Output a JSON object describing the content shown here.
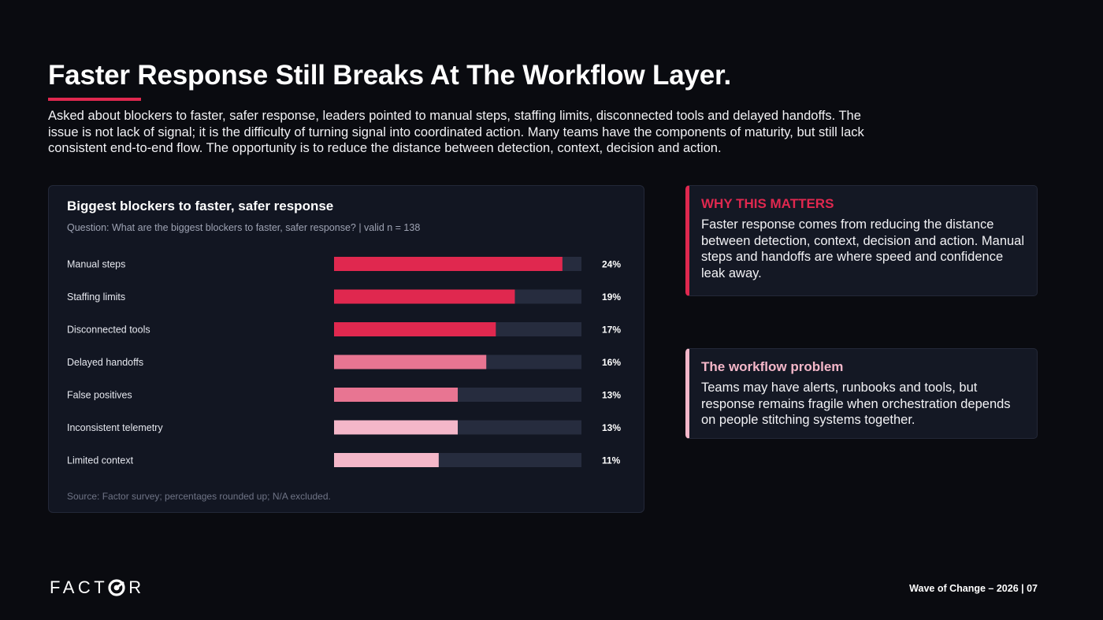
{
  "header": {
    "title": "Faster Response Still Breaks At The Workflow Layer.",
    "intro": "Asked about blockers to faster, safer response, leaders pointed to manual steps, staffing limits, disconnected tools and delayed handoffs. The issue is not lack of signal; it is the difficulty of turning signal into coordinated action. Many teams have the components of maturity, but still lack consistent end-to-end flow. The opportunity is to reduce the distance between detection, context, decision and action."
  },
  "colors": {
    "accent": "#e0284f",
    "bar_mid": "#e87592",
    "bar_light": "#f4b7c9",
    "bar_track": "#262c3e"
  },
  "chart_data": {
    "type": "bar",
    "orientation": "horizontal",
    "title": "Biggest blockers to faster, safer response",
    "subtitle": "Question: What are the biggest blockers to faster, safer response? | valid n = 138",
    "source": "Source: Factor survey; percentages rounded up; N/A excluded.",
    "categories": [
      "Manual steps",
      "Staffing limits",
      "Disconnected tools",
      "Delayed handoffs",
      "False positives",
      "Inconsistent telemetry",
      "Limited context"
    ],
    "values": [
      24,
      19,
      17,
      16,
      13,
      13,
      11
    ],
    "value_labels": [
      "24%",
      "19%",
      "17%",
      "16%",
      "13%",
      "13%",
      "11%"
    ],
    "bar_colors": [
      "#e0284f",
      "#e0284f",
      "#e0284f",
      "#e87592",
      "#e87592",
      "#f4b7c9",
      "#f4b7c9"
    ],
    "xlim": [
      0,
      26
    ],
    "grid": false
  },
  "cards": [
    {
      "heading": "WHY THIS MATTERS",
      "body": "Faster response comes from reducing the distance between detection, context, decision and action. Manual steps and handoffs are where speed and confidence leak away."
    },
    {
      "heading": "The workflow problem",
      "body": "Teams may have alerts, runbooks and tools, but response remains fragile when orchestration depends on people stitching systems together."
    }
  ],
  "footer": {
    "logo_text_left": "FACT",
    "logo_text_right": "R",
    "page_label": "Wave of Change – 2026 | 07",
    "logo_icon": "target-o-icon"
  }
}
